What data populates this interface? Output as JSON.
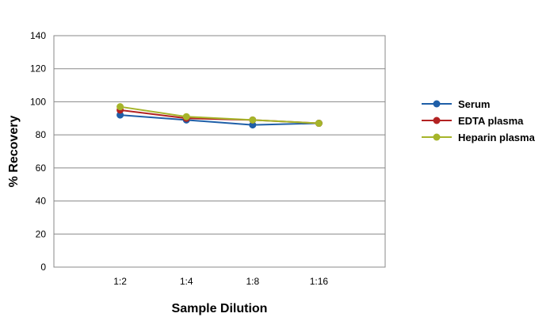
{
  "chart_data": {
    "type": "line",
    "xlabel": "Sample Dilution",
    "ylabel": "% Recovery",
    "categories": [
      "1:2",
      "1:4",
      "1:8",
      "1:16"
    ],
    "ylim": [
      0,
      140
    ],
    "yticks": [
      0,
      20,
      40,
      60,
      80,
      100,
      120,
      140
    ],
    "grid": true,
    "legend_position": "right",
    "series": [
      {
        "name": "Serum",
        "color": "#1f5fa8",
        "values": [
          92,
          89,
          86,
          87
        ]
      },
      {
        "name": "EDTA plasma",
        "color": "#b22222",
        "values": [
          95,
          90,
          89,
          87
        ]
      },
      {
        "name": "Heparin plasma",
        "color": "#a6b52a",
        "values": [
          97,
          91,
          89,
          87
        ]
      }
    ]
  }
}
